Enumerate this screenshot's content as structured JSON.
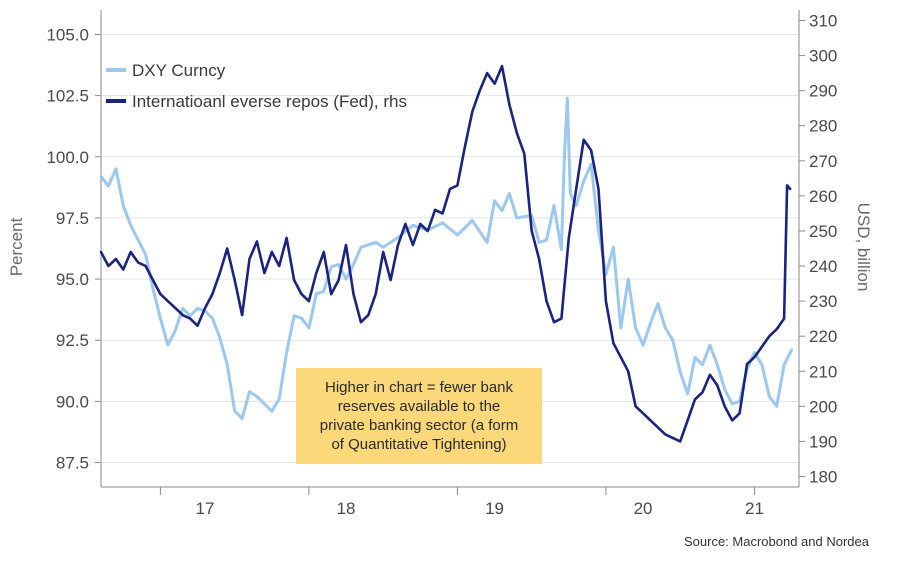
{
  "chart_data": {
    "type": "line",
    "title": "",
    "left_axis": {
      "title": "Percent",
      "range": [
        86.5,
        106
      ],
      "ticks": [
        87.5,
        90.0,
        92.5,
        95.0,
        97.5,
        100.0,
        102.5,
        105.0
      ],
      "tick_labels": [
        "87.5",
        "90.0",
        "92.5",
        "95.0",
        "97.5",
        "100.0",
        "102.5",
        "105.0"
      ]
    },
    "right_axis": {
      "title": "USD, billion",
      "range": [
        177,
        313
      ],
      "ticks": [
        180,
        190,
        200,
        210,
        220,
        230,
        240,
        250,
        260,
        270,
        280,
        290,
        300,
        310
      ],
      "tick_labels": [
        "180",
        "190",
        "200",
        "210",
        "220",
        "230",
        "240",
        "250",
        "260",
        "270",
        "280",
        "290",
        "300",
        "310"
      ]
    },
    "x_axis": {
      "range": [
        2016.6,
        2021.3
      ],
      "boundaries": [
        2017.0,
        2018.0,
        2019.0,
        2020.0,
        2021.0
      ],
      "labels": [
        {
          "label": "17",
          "x": 2017.3
        },
        {
          "label": "18",
          "x": 2018.25
        },
        {
          "label": "19",
          "x": 2019.25
        },
        {
          "label": "20",
          "x": 2020.25
        },
        {
          "label": "21",
          "x": 2021.0
        }
      ]
    },
    "legend_position": "top-left",
    "series": [
      {
        "name": "DXY Curncy",
        "axis": "left",
        "color": "#9cc8f0",
        "x": [
          2016.6,
          2016.65,
          2016.7,
          2016.75,
          2016.8,
          2016.9,
          2016.95,
          2017.0,
          2017.05,
          2017.1,
          2017.15,
          2017.2,
          2017.25,
          2017.3,
          2017.35,
          2017.4,
          2017.45,
          2017.5,
          2017.55,
          2017.6,
          2017.65,
          2017.7,
          2017.75,
          2017.8,
          2017.85,
          2017.9,
          2017.95,
          2018.0,
          2018.05,
          2018.1,
          2018.15,
          2018.2,
          2018.25,
          2018.3,
          2018.35,
          2018.4,
          2018.45,
          2018.5,
          2018.6,
          2018.7,
          2018.8,
          2018.9,
          2019.0,
          2019.1,
          2019.2,
          2019.25,
          2019.3,
          2019.35,
          2019.4,
          2019.5,
          2019.55,
          2019.6,
          2019.65,
          2019.7,
          2019.72,
          2019.74,
          2019.76,
          2019.8,
          2019.85,
          2019.9,
          2019.95,
          2020.0,
          2020.05,
          2020.1,
          2020.15,
          2020.2,
          2020.25,
          2020.3,
          2020.35,
          2020.4,
          2020.45,
          2020.5,
          2020.55,
          2020.6,
          2020.65,
          2020.7,
          2020.75,
          2020.8,
          2020.85,
          2020.9,
          2020.95,
          2021.0,
          2021.05,
          2021.1,
          2021.15,
          2021.2,
          2021.25
        ],
        "values": [
          99.2,
          98.8,
          99.5,
          98.0,
          97.2,
          96.0,
          94.6,
          93.4,
          92.3,
          92.9,
          93.8,
          93.5,
          93.8,
          93.7,
          93.4,
          92.6,
          91.5,
          89.6,
          89.3,
          90.4,
          90.2,
          89.9,
          89.6,
          90.1,
          92.0,
          93.5,
          93.4,
          93.0,
          94.4,
          94.5,
          95.5,
          95.6,
          95.0,
          95.6,
          96.3,
          96.4,
          96.5,
          96.3,
          96.7,
          97.2,
          97.0,
          97.3,
          96.8,
          97.4,
          96.5,
          98.2,
          97.8,
          98.5,
          97.5,
          97.6,
          96.5,
          96.6,
          98.0,
          96.2,
          100.0,
          102.4,
          98.5,
          98.0,
          99.0,
          99.7,
          97.0,
          95.2,
          96.3,
          93.0,
          95.0,
          93.0,
          92.3,
          93.2,
          94.0,
          93.0,
          92.5,
          91.2,
          90.3,
          91.8,
          91.5,
          92.3,
          91.5,
          90.5,
          89.9,
          90.0,
          91.3,
          92.0,
          91.5,
          90.2,
          89.8,
          91.5,
          92.1
        ]
      },
      {
        "name": "Internatioanl everse repos (Fed), rhs",
        "axis": "right",
        "color": "#1a237e",
        "x": [
          2016.6,
          2016.65,
          2016.7,
          2016.75,
          2016.8,
          2016.85,
          2016.9,
          2016.95,
          2017.0,
          2017.05,
          2017.1,
          2017.15,
          2017.2,
          2017.25,
          2017.3,
          2017.35,
          2017.4,
          2017.45,
          2017.5,
          2017.55,
          2017.6,
          2017.65,
          2017.7,
          2017.75,
          2017.8,
          2017.85,
          2017.9,
          2017.95,
          2018.0,
          2018.05,
          2018.1,
          2018.15,
          2018.2,
          2018.25,
          2018.3,
          2018.35,
          2018.4,
          2018.45,
          2018.5,
          2018.55,
          2018.6,
          2018.65,
          2018.7,
          2018.75,
          2018.8,
          2018.85,
          2018.9,
          2018.95,
          2019.0,
          2019.05,
          2019.1,
          2019.15,
          2019.2,
          2019.25,
          2019.3,
          2019.35,
          2019.4,
          2019.45,
          2019.5,
          2019.55,
          2019.6,
          2019.65,
          2019.7,
          2019.75,
          2019.8,
          2019.85,
          2019.9,
          2019.95,
          2020.0,
          2020.05,
          2020.1,
          2020.15,
          2020.2,
          2020.25,
          2020.3,
          2020.35,
          2020.4,
          2020.45,
          2020.5,
          2020.55,
          2020.6,
          2020.65,
          2020.7,
          2020.75,
          2020.8,
          2020.85,
          2020.9,
          2020.95,
          2021.0,
          2021.05,
          2021.1,
          2021.15,
          2021.2,
          2021.22,
          2021.24
        ],
        "values": [
          244,
          240,
          242,
          239,
          244,
          241,
          240,
          236,
          232,
          230,
          228,
          226,
          225,
          223,
          228,
          232,
          238,
          245,
          236,
          226,
          242,
          247,
          238,
          244,
          240,
          248,
          236,
          232,
          230,
          238,
          244,
          232,
          236,
          246,
          232,
          224,
          226,
          232,
          244,
          236,
          246,
          252,
          246,
          252,
          250,
          256,
          255,
          262,
          263,
          274,
          284,
          290,
          295,
          292,
          297,
          286,
          278,
          272,
          250,
          242,
          230,
          224,
          225,
          248,
          262,
          276,
          273,
          262,
          230,
          218,
          214,
          210,
          200,
          198,
          196,
          194,
          192,
          191,
          190,
          196,
          202,
          204,
          209,
          206,
          200,
          196,
          198,
          212,
          214,
          217,
          220,
          222,
          225,
          263,
          262
        ]
      }
    ]
  },
  "annotation": {
    "lines": [
      "Higher in chart = fewer bank",
      "reserves available to the",
      "private banking sector (a form",
      "of Quantitative Tightening)"
    ]
  },
  "source": "Source: Macrobond and Nordea"
}
